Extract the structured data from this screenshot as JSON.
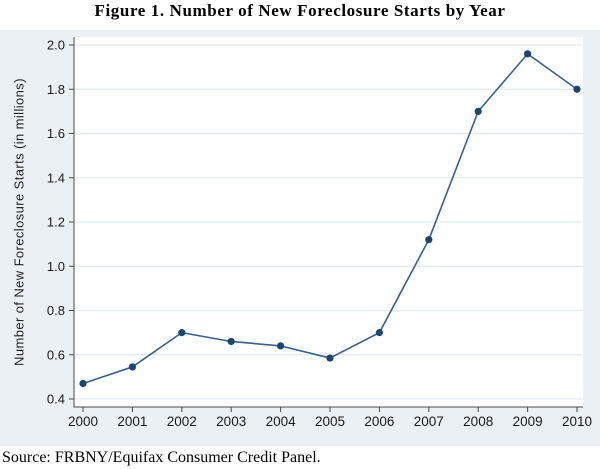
{
  "figure": {
    "title": "Figure 1. Number of New Foreclosure Starts by Year",
    "source": "Source: FRBNY/Equifax Consumer Credit Panel."
  },
  "chart_data": {
    "type": "line",
    "title": "Figure 1. Number of New Foreclosure Starts by Year",
    "xlabel": "",
    "ylabel": "Number of New Foreclosure Starts (in millions)",
    "categories": [
      "2000",
      "2001",
      "2002",
      "2003",
      "2004",
      "2005",
      "2006",
      "2007",
      "2008",
      "2009",
      "2010"
    ],
    "values": [
      0.47,
      0.545,
      0.7,
      0.66,
      0.64,
      0.585,
      0.7,
      1.12,
      1.7,
      1.96,
      1.8
    ],
    "series_name": "New foreclosure starts",
    "ylim": [
      0.4,
      2.0
    ],
    "yticks": [
      0.4,
      0.6,
      0.8,
      1.0,
      1.2,
      1.4,
      1.6,
      1.8,
      2.0
    ],
    "grid": "horizontal",
    "legend": "none",
    "marker": "filled-circle",
    "source": "Source: FRBNY/Equifax Consumer Credit Panel.",
    "colors": {
      "marker": "#1a476f",
      "line": "#35618f",
      "plot_background": "#ffffff",
      "graph_background": "#eaf0f4",
      "gridline": "#e5eaf0",
      "axis": "#4a4a4a",
      "text": "#1a1a1a"
    }
  }
}
